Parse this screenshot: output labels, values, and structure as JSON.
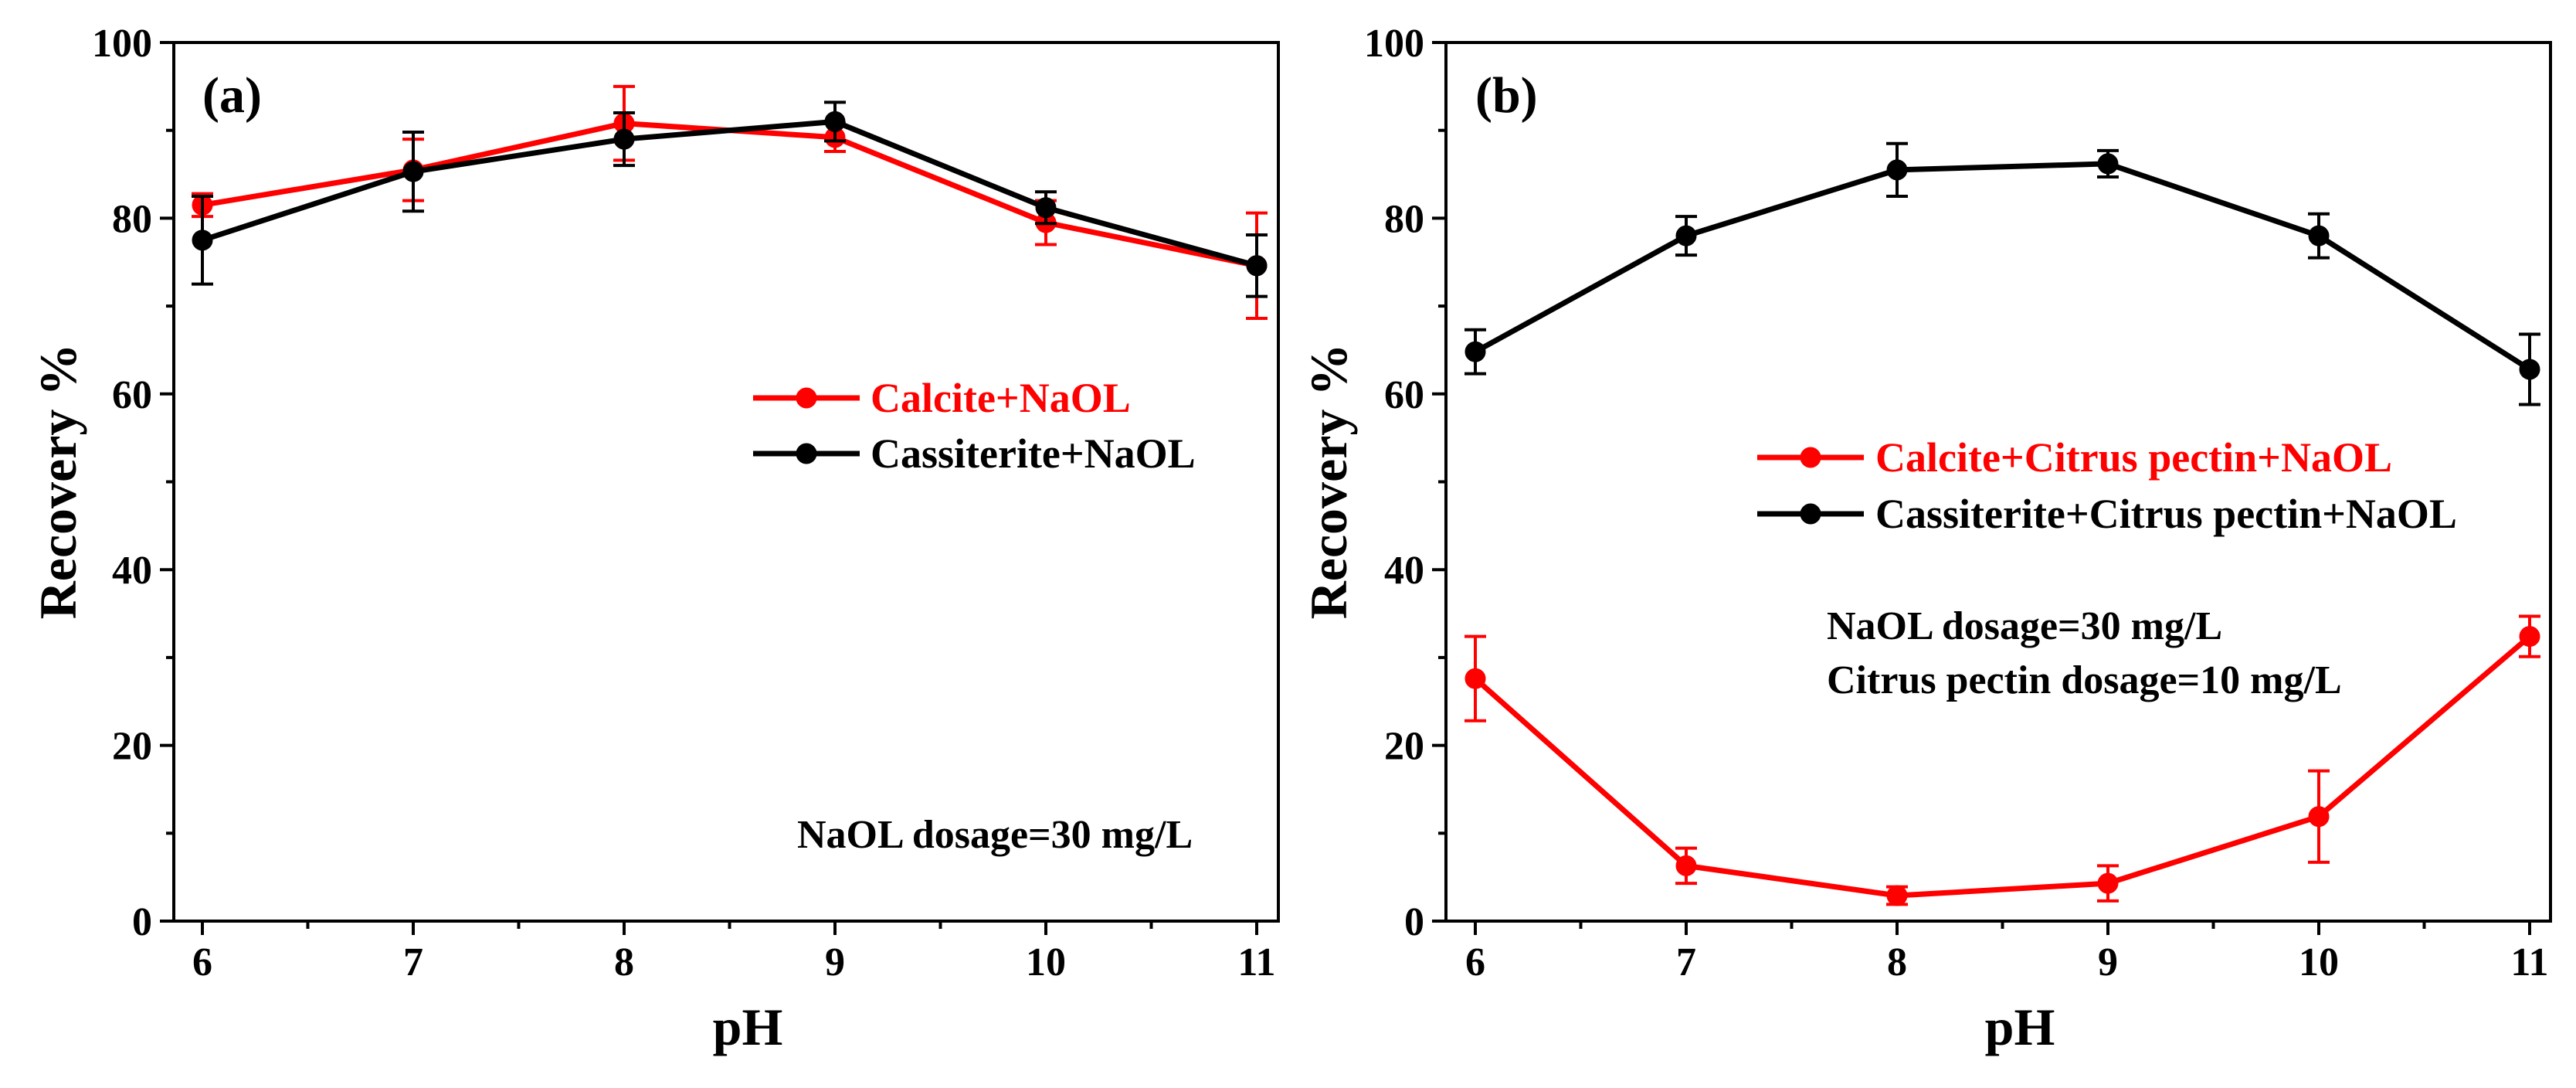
{
  "chart_data": [
    {
      "type": "line",
      "panel_label": "(a)",
      "xlabel": "pH",
      "ylabel": "Recovery %",
      "xlim": [
        6,
        11
      ],
      "ylim": [
        0,
        100
      ],
      "x_ticks": [
        6,
        7,
        8,
        9,
        10,
        11
      ],
      "y_ticks": [
        0,
        20,
        40,
        60,
        80,
        100
      ],
      "grid": false,
      "legend_placement": "center-right",
      "series": [
        {
          "name": "Calcite+NaOL",
          "color": "#ff0000",
          "x": [
            6,
            7,
            8,
            9,
            10,
            11
          ],
          "values": [
            81.5,
            85.5,
            90.8,
            89.2,
            79.5,
            74.6
          ],
          "errors": [
            1.3,
            3.5,
            4.2,
            1.6,
            2.5,
            6.0
          ]
        },
        {
          "name": "Cassiterite+NaOL",
          "color": "#000000",
          "x": [
            6,
            7,
            8,
            9,
            10,
            11
          ],
          "values": [
            77.5,
            85.3,
            89.0,
            91.0,
            81.2,
            74.6
          ],
          "errors": [
            5.0,
            4.5,
            3.0,
            2.2,
            1.8,
            3.5
          ]
        }
      ],
      "annotations": [
        "NaOL dosage=30 mg/L"
      ]
    },
    {
      "type": "line",
      "panel_label": "(b)",
      "xlabel": "pH",
      "ylabel": "Recovery %",
      "xlim": [
        6,
        11
      ],
      "ylim": [
        0,
        100
      ],
      "x_ticks": [
        6,
        7,
        8,
        9,
        10,
        11
      ],
      "y_ticks": [
        0,
        20,
        40,
        60,
        80,
        100
      ],
      "grid": false,
      "legend_placement": "upper-right",
      "series": [
        {
          "name": "Calcite+Citrus pectin+NaOL",
          "color": "#ff0000",
          "x": [
            6,
            7,
            8,
            9,
            10,
            11
          ],
          "values": [
            27.6,
            6.3,
            2.9,
            4.3,
            11.9,
            32.4
          ],
          "errors": [
            4.8,
            2.0,
            1.0,
            2.0,
            5.2,
            2.3
          ]
        },
        {
          "name": "Cassiterite+Citrus pectin+NaOL",
          "color": "#000000",
          "x": [
            6,
            7,
            8,
            9,
            10,
            11
          ],
          "values": [
            64.8,
            78.0,
            85.5,
            86.2,
            78.0,
            62.8
          ],
          "errors": [
            2.5,
            2.2,
            3.0,
            1.5,
            2.5,
            4.0
          ]
        }
      ],
      "annotations": [
        "NaOL dosage=30 mg/L",
        "Citrus pectin dosage=10 mg/L"
      ]
    }
  ]
}
